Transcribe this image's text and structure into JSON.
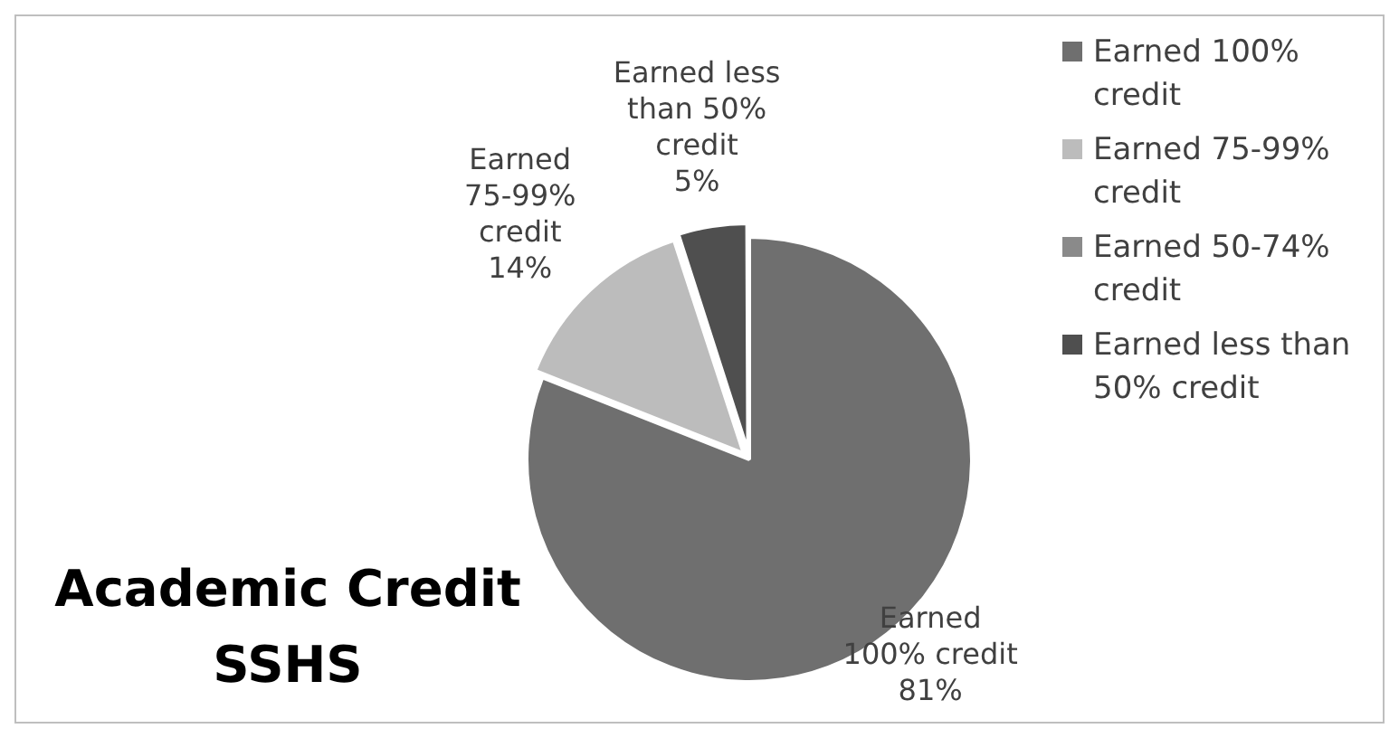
{
  "chart_data": {
    "type": "pie",
    "title": "Academic Credit SSHS",
    "categories": [
      "Earned 100% credit",
      "Earned 75-99% credit",
      "Earned 50-74% credit",
      "Earned less than 50% credit"
    ],
    "values": [
      81,
      14,
      0,
      5
    ],
    "value_labels": [
      "81%",
      "14%",
      null,
      "5%"
    ],
    "colors": [
      "#6f6f6f",
      "#bcbcbc",
      "#8a8a8a",
      "#4f4f4f"
    ],
    "legend": "right"
  }
}
